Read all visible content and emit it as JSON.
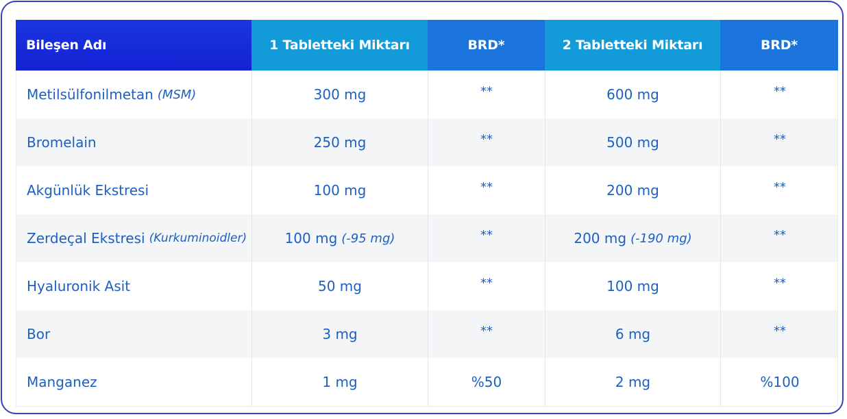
{
  "headers": [
    "Bileşen Adı",
    "1 Tabletteki Miktarı",
    "BRD*",
    "2 Tabletteki Miktarı",
    "BRD*"
  ],
  "rows": [
    {
      "name": "Metilsülfonilmetan",
      "name_note": "(MSM)",
      "amount1": "300 mg",
      "amount1_note": "",
      "brd1": "**",
      "amount2": "600 mg",
      "amount2_note": "",
      "brd2": "**"
    },
    {
      "name": "Bromelain",
      "name_note": "",
      "amount1": "250 mg",
      "amount1_note": "",
      "brd1": "**",
      "amount2": "500 mg",
      "amount2_note": "",
      "brd2": "**"
    },
    {
      "name": "Akgünlük Ekstresi",
      "name_note": "",
      "amount1": "100 mg",
      "amount1_note": "",
      "brd1": "**",
      "amount2": "200 mg",
      "amount2_note": "",
      "brd2": "**"
    },
    {
      "name": "Zerdeçal Ekstresi",
      "name_note": "(Kurkuminoidler)",
      "amount1": "100 mg",
      "amount1_note": "(-95 mg)",
      "brd1": "**",
      "amount2": "200 mg",
      "amount2_note": "(-190 mg)",
      "brd2": "**"
    },
    {
      "name": "Hyaluronik Asit",
      "name_note": "",
      "amount1": "50 mg",
      "amount1_note": "",
      "brd1": "**",
      "amount2": "100 mg",
      "amount2_note": "",
      "brd2": "**"
    },
    {
      "name": "Bor",
      "name_note": "",
      "amount1": "3 mg",
      "amount1_note": "",
      "brd1": "**",
      "amount2": "6 mg",
      "amount2_note": "",
      "brd2": "**"
    },
    {
      "name": "Manganez",
      "name_note": "",
      "amount1": "1 mg",
      "amount1_note": "",
      "brd1": "%50",
      "amount2": "2 mg",
      "amount2_note": "",
      "brd2": "%100"
    }
  ],
  "colors": {
    "frame": "#3f3dbf",
    "header_dark": "#1322d4",
    "header_cyan": "#139ad8",
    "header_blue": "#1a74dc",
    "text": "#1d5fbf",
    "alt_row": "#f4f5f7"
  }
}
